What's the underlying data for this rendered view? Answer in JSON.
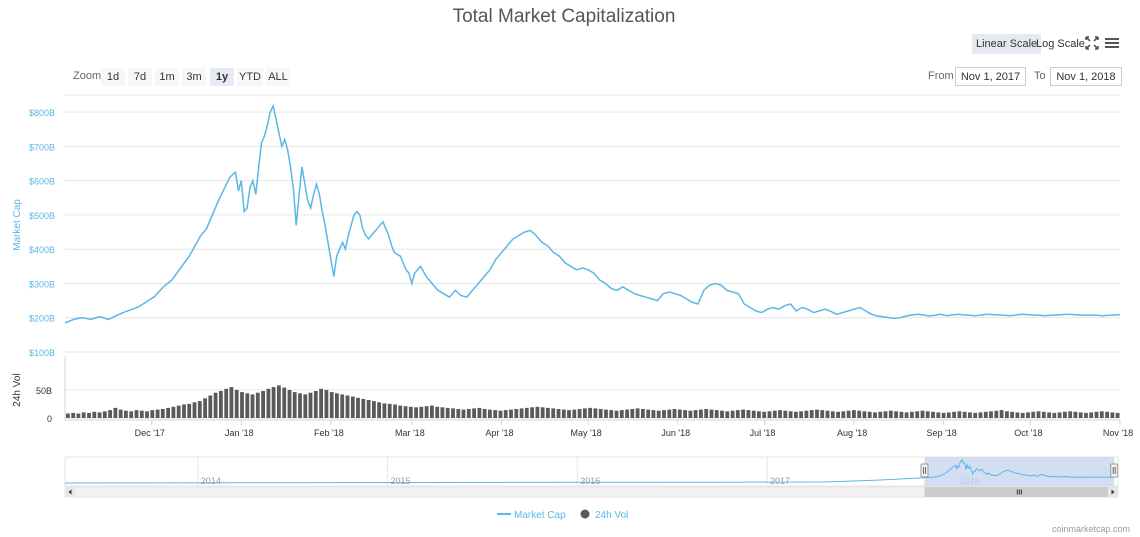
{
  "title": "Total Market Capitalization",
  "scale_buttons": {
    "linear": "Linear Scale",
    "log": "Log Scale"
  },
  "zoom": {
    "label": "Zoom",
    "buttons": [
      "1d",
      "7d",
      "1m",
      "3m",
      "1y",
      "YTD",
      "ALL"
    ],
    "active": "1y"
  },
  "range": {
    "from_label": "From",
    "from_value": "Nov 1, 2017",
    "to_label": "To",
    "to_value": "Nov 1, 2018"
  },
  "credit": "coinmarketcap.com",
  "icons": {
    "fullscreen": "fullscreen-icon",
    "menu": "hamburger-menu-icon"
  },
  "colors": {
    "market_cap": "#5bb7e5",
    "volume": "#5a5a5a",
    "navigator_fill": "#c9d6ef"
  },
  "chart_data": {
    "type": "line",
    "ylabel": "Market Cap",
    "ylabel2": "24h Vol",
    "y_ticks": [
      "$800B",
      "$700B",
      "$600B",
      "$500B",
      "$400B",
      "$300B",
      "$200B",
      "$100B"
    ],
    "ylim": [
      100,
      850
    ],
    "vol_ticks": [
      "50B",
      "0"
    ],
    "vol_ylim": [
      0,
      80
    ],
    "x_ticks": [
      "Dec '17",
      "Jan '18",
      "Feb '18",
      "Mar '18",
      "Apr '18",
      "May '18",
      "Jun '18",
      "Jul '18",
      "Aug '18",
      "Sep '18",
      "Oct '18",
      "Nov '18"
    ],
    "x_tick_days": [
      30,
      61,
      92,
      120,
      151,
      181,
      212,
      242,
      273,
      304,
      334,
      365
    ],
    "x_range_days": [
      0,
      365
    ],
    "navigator_ticks": [
      "2014",
      "2015",
      "2016",
      "2017",
      "2018"
    ],
    "navigator_range": [
      2013.3,
      2018.85
    ],
    "navigator_selection": [
      2017.83,
      2018.83
    ],
    "series": [
      {
        "name": "Market Cap",
        "unit": "billion USD",
        "points": [
          [
            0,
            185
          ],
          [
            3,
            195
          ],
          [
            6,
            200
          ],
          [
            9,
            195
          ],
          [
            12,
            203
          ],
          [
            15,
            195
          ],
          [
            18,
            207
          ],
          [
            21,
            218
          ],
          [
            25,
            230
          ],
          [
            28,
            245
          ],
          [
            31,
            262
          ],
          [
            34,
            290
          ],
          [
            37,
            310
          ],
          [
            40,
            345
          ],
          [
            43,
            380
          ],
          [
            45,
            410
          ],
          [
            47,
            440
          ],
          [
            49,
            460
          ],
          [
            51,
            500
          ],
          [
            53,
            540
          ],
          [
            55,
            575
          ],
          [
            57,
            610
          ],
          [
            59,
            625
          ],
          [
            60,
            570
          ],
          [
            61,
            600
          ],
          [
            62,
            510
          ],
          [
            63,
            520
          ],
          [
            64,
            580
          ],
          [
            65,
            600
          ],
          [
            66,
            560
          ],
          [
            67,
            640
          ],
          [
            68,
            710
          ],
          [
            69,
            730
          ],
          [
            70,
            760
          ],
          [
            71,
            800
          ],
          [
            72,
            818
          ],
          [
            73,
            780
          ],
          [
            74,
            740
          ],
          [
            75,
            700
          ],
          [
            76,
            720
          ],
          [
            77,
            690
          ],
          [
            78,
            640
          ],
          [
            79,
            580
          ],
          [
            80,
            470
          ],
          [
            81,
            560
          ],
          [
            82,
            640
          ],
          [
            83,
            590
          ],
          [
            84,
            540
          ],
          [
            85,
            520
          ],
          [
            86,
            560
          ],
          [
            87,
            590
          ],
          [
            88,
            560
          ],
          [
            89,
            510
          ],
          [
            90,
            470
          ],
          [
            91,
            420
          ],
          [
            92,
            370
          ],
          [
            93,
            320
          ],
          [
            94,
            380
          ],
          [
            95,
            400
          ],
          [
            96,
            420
          ],
          [
            97,
            400
          ],
          [
            98,
            440
          ],
          [
            99,
            470
          ],
          [
            100,
            500
          ],
          [
            101,
            510
          ],
          [
            102,
            500
          ],
          [
            103,
            460
          ],
          [
            104,
            440
          ],
          [
            105,
            430
          ],
          [
            107,
            450
          ],
          [
            109,
            470
          ],
          [
            110,
            480
          ],
          [
            111,
            460
          ],
          [
            112,
            440
          ],
          [
            113,
            410
          ],
          [
            114,
            390
          ],
          [
            116,
            380
          ],
          [
            118,
            340
          ],
          [
            119,
            330
          ],
          [
            120,
            300
          ],
          [
            121,
            330
          ],
          [
            123,
            350
          ],
          [
            125,
            320
          ],
          [
            127,
            300
          ],
          [
            129,
            280
          ],
          [
            131,
            270
          ],
          [
            133,
            260
          ],
          [
            135,
            280
          ],
          [
            137,
            265
          ],
          [
            139,
            260
          ],
          [
            141,
            280
          ],
          [
            143,
            300
          ],
          [
            145,
            320
          ],
          [
            147,
            340
          ],
          [
            149,
            370
          ],
          [
            151,
            390
          ],
          [
            153,
            410
          ],
          [
            155,
            430
          ],
          [
            157,
            440
          ],
          [
            159,
            450
          ],
          [
            161,
            455
          ],
          [
            163,
            440
          ],
          [
            165,
            420
          ],
          [
            167,
            410
          ],
          [
            169,
            390
          ],
          [
            171,
            380
          ],
          [
            173,
            360
          ],
          [
            175,
            350
          ],
          [
            177,
            340
          ],
          [
            179,
            345
          ],
          [
            181,
            340
          ],
          [
            183,
            330
          ],
          [
            185,
            310
          ],
          [
            187,
            300
          ],
          [
            189,
            285
          ],
          [
            191,
            280
          ],
          [
            193,
            290
          ],
          [
            195,
            280
          ],
          [
            197,
            270
          ],
          [
            199,
            265
          ],
          [
            201,
            260
          ],
          [
            203,
            255
          ],
          [
            205,
            250
          ],
          [
            207,
            270
          ],
          [
            209,
            275
          ],
          [
            211,
            270
          ],
          [
            213,
            265
          ],
          [
            215,
            255
          ],
          [
            217,
            245
          ],
          [
            219,
            240
          ],
          [
            221,
            280
          ],
          [
            223,
            295
          ],
          [
            225,
            300
          ],
          [
            227,
            295
          ],
          [
            229,
            280
          ],
          [
            231,
            275
          ],
          [
            233,
            270
          ],
          [
            235,
            240
          ],
          [
            237,
            230
          ],
          [
            239,
            220
          ],
          [
            241,
            215
          ],
          [
            243,
            225
          ],
          [
            245,
            230
          ],
          [
            247,
            225
          ],
          [
            249,
            235
          ],
          [
            251,
            240
          ],
          [
            253,
            220
          ],
          [
            255,
            230
          ],
          [
            257,
            225
          ],
          [
            259,
            215
          ],
          [
            261,
            220
          ],
          [
            263,
            225
          ],
          [
            265,
            218
          ],
          [
            267,
            210
          ],
          [
            269,
            215
          ],
          [
            271,
            220
          ],
          [
            273,
            225
          ],
          [
            275,
            230
          ],
          [
            277,
            220
          ],
          [
            279,
            210
          ],
          [
            281,
            205
          ],
          [
            283,
            203
          ],
          [
            285,
            200
          ],
          [
            287,
            198
          ],
          [
            289,
            200
          ],
          [
            291,
            205
          ],
          [
            293,
            208
          ],
          [
            295,
            210
          ],
          [
            297,
            208
          ],
          [
            299,
            205
          ],
          [
            301,
            207
          ],
          [
            303,
            210
          ],
          [
            305,
            206
          ],
          [
            307,
            208
          ],
          [
            309,
            210
          ],
          [
            311,
            208
          ],
          [
            313,
            207
          ],
          [
            315,
            206
          ],
          [
            317,
            208
          ],
          [
            319,
            210
          ],
          [
            321,
            209
          ],
          [
            323,
            208
          ],
          [
            325,
            207
          ],
          [
            327,
            206
          ],
          [
            329,
            208
          ],
          [
            331,
            210
          ],
          [
            333,
            209
          ],
          [
            335,
            208
          ],
          [
            337,
            207
          ],
          [
            339,
            206
          ],
          [
            341,
            207
          ],
          [
            343,
            208
          ],
          [
            345,
            209
          ],
          [
            347,
            210
          ],
          [
            349,
            209
          ],
          [
            351,
            208
          ],
          [
            353,
            207
          ],
          [
            355,
            208
          ],
          [
            357,
            207
          ],
          [
            359,
            206
          ],
          [
            361,
            207
          ],
          [
            363,
            208
          ],
          [
            365,
            209
          ]
        ]
      },
      {
        "name": "24h Vol",
        "unit": "billion USD",
        "values": [
          8,
          9,
          8,
          10,
          9,
          11,
          10,
          12,
          14,
          18,
          15,
          13,
          12,
          14,
          13,
          12,
          14,
          15,
          16,
          18,
          20,
          22,
          24,
          25,
          28,
          30,
          35,
          40,
          45,
          48,
          52,
          55,
          50,
          46,
          44,
          42,
          45,
          48,
          52,
          55,
          58,
          54,
          50,
          46,
          44,
          42,
          45,
          48,
          52,
          50,
          46,
          44,
          42,
          40,
          38,
          36,
          34,
          32,
          30,
          28,
          26,
          25,
          24,
          22,
          21,
          20,
          19,
          20,
          21,
          22,
          20,
          19,
          18,
          17,
          16,
          15,
          16,
          17,
          18,
          16,
          15,
          14,
          13,
          14,
          15,
          16,
          17,
          18,
          19,
          20,
          19,
          18,
          17,
          16,
          15,
          14,
          15,
          16,
          17,
          18,
          17,
          16,
          15,
          14,
          13,
          14,
          15,
          16,
          17,
          16,
          15,
          14,
          13,
          14,
          15,
          16,
          15,
          14,
          13,
          14,
          15,
          16,
          15,
          14,
          13,
          12,
          13,
          14,
          15,
          14,
          13,
          12,
          11,
          12,
          13,
          14,
          13,
          12,
          11,
          12,
          13,
          14,
          15,
          14,
          13,
          12,
          11,
          12,
          13,
          14,
          13,
          12,
          11,
          10,
          11,
          12,
          13,
          12,
          11,
          10,
          11,
          12,
          13,
          12,
          11,
          10,
          9,
          10,
          11,
          12,
          11,
          10,
          9,
          10,
          11,
          12,
          13,
          14,
          12,
          11,
          10,
          9,
          10,
          11,
          12,
          11,
          10,
          9,
          10,
          11,
          12,
          11,
          10,
          9,
          10,
          11,
          12,
          11,
          10,
          9
        ]
      }
    ]
  }
}
